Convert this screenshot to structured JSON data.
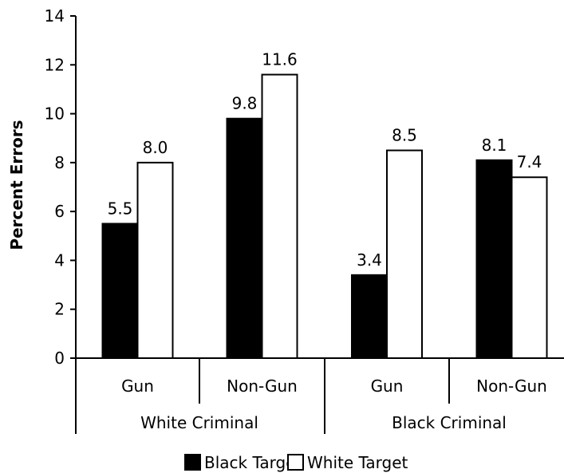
{
  "chart_data": {
    "type": "bar",
    "ylabel": "Percent Errors",
    "ylim": [
      0,
      14
    ],
    "yticks": [
      0,
      2,
      4,
      6,
      8,
      10,
      12,
      14
    ],
    "grid": false,
    "legend_position": "bottom",
    "groups": [
      {
        "label": "White Criminal",
        "categories": [
          "Gun",
          "Non-Gun"
        ]
      },
      {
        "label": "Black Criminal",
        "categories": [
          "Gun",
          "Non-Gun"
        ]
      }
    ],
    "categories": [
      "Gun",
      "Non-Gun",
      "Gun",
      "Non-Gun"
    ],
    "series": [
      {
        "name": "Black Target",
        "color": "#000000",
        "values": [
          5.5,
          9.8,
          3.4,
          8.1
        ],
        "labels": [
          "5.5",
          "9.8",
          "3.4",
          "8.1"
        ]
      },
      {
        "name": "White Target",
        "color": "#ffffff",
        "values": [
          8.0,
          11.6,
          8.5,
          7.4
        ],
        "labels": [
          "8.0",
          "11.6",
          "8.5",
          "7.4"
        ]
      }
    ]
  }
}
